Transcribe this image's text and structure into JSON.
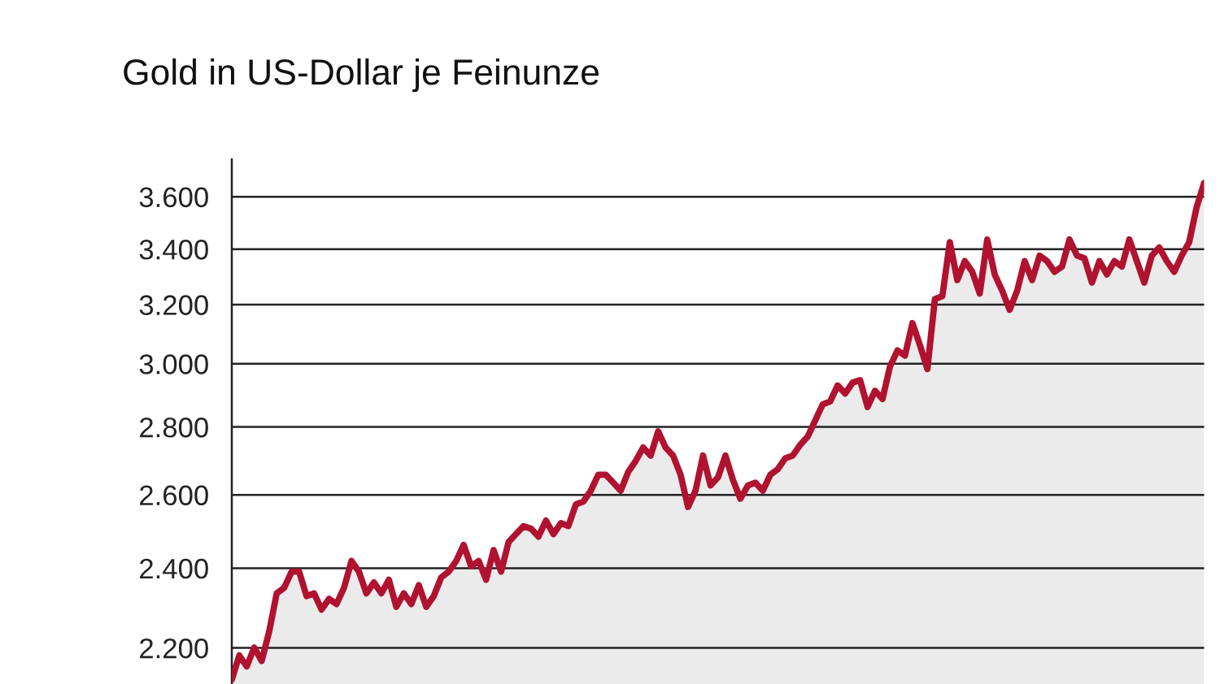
{
  "chart_data": {
    "type": "area",
    "title": "Gold in US-Dollar je Feinunze",
    "categories": [
      null,
      null,
      null,
      null,
      null,
      null,
      null,
      null,
      null,
      null,
      null,
      null,
      null,
      null,
      null,
      null,
      null,
      null,
      null,
      null,
      null,
      null,
      null,
      null,
      null,
      null,
      null,
      null,
      null,
      null,
      null,
      null,
      null,
      null,
      null,
      null,
      null,
      null,
      null,
      null,
      null,
      null,
      null,
      null,
      null,
      null,
      null,
      null,
      null,
      null,
      null,
      null,
      null,
      null,
      null,
      null,
      null,
      null,
      null,
      null,
      null,
      null,
      null,
      null,
      null,
      null,
      null,
      null,
      null,
      null,
      null,
      null,
      null,
      null,
      null,
      null,
      null,
      null,
      null,
      null,
      null,
      null,
      null,
      null,
      null,
      null,
      null,
      null,
      null,
      null,
      null,
      null,
      null,
      null,
      null,
      null,
      null,
      null,
      null,
      null,
      null,
      null,
      null,
      null,
      null,
      null,
      null,
      null,
      null,
      null,
      null,
      null,
      null,
      null,
      null,
      null,
      null,
      null,
      null,
      null,
      null,
      null,
      null,
      null,
      null,
      null,
      null,
      null,
      null,
      null,
      null
    ],
    "series": [
      {
        "color": "#b0122f",
        "values": [
          2125,
          2182,
          2156,
          2201,
          2169,
          2240,
          2335,
          2349,
          2391,
          2391,
          2328,
          2335,
          2294,
          2321,
          2308,
          2349,
          2419,
          2391,
          2335,
          2363,
          2335,
          2370,
          2301,
          2335,
          2308,
          2356,
          2301,
          2328,
          2376,
          2391,
          2419,
          2462,
          2405,
          2419,
          2370,
          2448,
          2391,
          2469,
          2491,
          2513,
          2506,
          2484,
          2528,
          2491,
          2521,
          2513,
          2573,
          2581,
          2612,
          2658,
          2658,
          2635,
          2612,
          2666,
          2698,
          2738,
          2714,
          2787,
          2738,
          2714,
          2658,
          2566,
          2612,
          2714,
          2627,
          2650,
          2714,
          2643,
          2589,
          2627,
          2635,
          2612,
          2658,
          2674,
          2706,
          2714,
          2746,
          2771,
          2820,
          2870,
          2879,
          2930,
          2904,
          2939,
          2947,
          2862,
          2913,
          2887,
          2991,
          3044,
          3027,
          3136,
          3062,
          2983,
          3220,
          3230,
          3426,
          3287,
          3356,
          3317,
          3239,
          3436,
          3307,
          3249,
          3182,
          3249,
          3356,
          3287,
          3376,
          3356,
          3317,
          3336,
          3436,
          3376,
          3366,
          3278,
          3356,
          3307,
          3356,
          3336,
          3436,
          3356,
          3278,
          3376,
          3406,
          3356,
          3317,
          3376,
          3426,
          3560,
          3655
        ]
      }
    ],
    "log": true,
    "ylim": [
      2115,
      3750
    ],
    "yticks": [
      {
        "value": 2200,
        "label": "2.200"
      },
      {
        "value": 2400,
        "label": "2.400"
      },
      {
        "value": 2600,
        "label": "2.600"
      },
      {
        "value": 2800,
        "label": "2.800"
      },
      {
        "value": 3000,
        "label": "3.000"
      },
      {
        "value": 3200,
        "label": "3.200"
      },
      {
        "value": 3400,
        "label": "3.400"
      },
      {
        "value": 3600,
        "label": "3.600"
      }
    ],
    "grid": "y",
    "tick_labels": "y"
  }
}
